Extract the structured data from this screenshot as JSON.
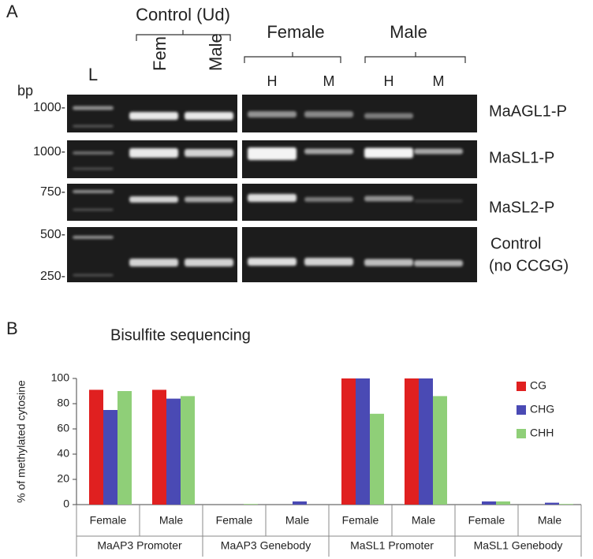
{
  "panel_a": {
    "label": "A",
    "group_labels": [
      "Control (Ud)",
      "Female",
      "Male"
    ],
    "lane_labels": [
      "L",
      "Fem",
      "Male",
      "H",
      "M",
      "H",
      "M"
    ],
    "unit": "bp",
    "size_markers": [
      "1000-",
      "1000-",
      "750-",
      "500-",
      "250-"
    ],
    "row_labels": [
      "MaAGL1-P",
      "MaSL1-P",
      "MaSL2-P",
      "Control",
      "(no CCGG)"
    ]
  },
  "chart_data": {
    "panel_label": "B",
    "type": "bar",
    "title": "Bisulfite sequencing",
    "y_label": "% of methylated cytosine",
    "categories": [
      "Female",
      "Male",
      "Female",
      "Male",
      "Female",
      "Male",
      "Female",
      "Male"
    ],
    "groups": [
      "MaAP3 Promoter",
      "MaAP3 Genebody",
      "MaSL1 Promoter",
      "MaSL1 Genebody"
    ],
    "series": [
      {
        "name": "CG",
        "color": "#e02020",
        "values": [
          91,
          91,
          0,
          0,
          100,
          100,
          0,
          0
        ]
      },
      {
        "name": "CHG",
        "color": "#4a4ab4",
        "values": [
          75,
          84,
          0,
          2.5,
          100,
          100,
          2.5,
          1.5
        ]
      },
      {
        "name": "CHH",
        "color": "#8fcf78",
        "values": [
          90,
          86,
          0.5,
          0,
          72,
          86,
          2.5,
          0.5
        ]
      }
    ],
    "ylim": [
      0,
      100
    ],
    "yticks": [
      0,
      20,
      40,
      60,
      80,
      100
    ],
    "legend": "right"
  }
}
